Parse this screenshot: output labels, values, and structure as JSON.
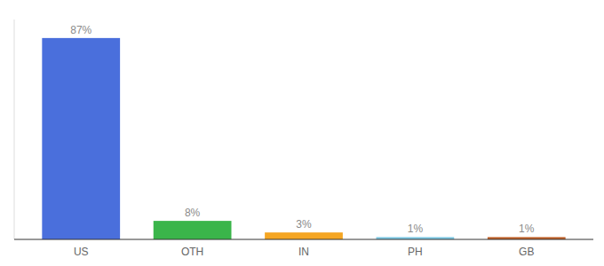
{
  "chart_data": {
    "type": "bar",
    "categories": [
      "US",
      "OTH",
      "IN",
      "PH",
      "GB"
    ],
    "values": [
      87,
      8,
      3,
      1,
      1
    ],
    "value_labels": [
      "87%",
      "8%",
      "3%",
      "1%",
      "1%"
    ],
    "colors": [
      "#4a6fdc",
      "#3ab54a",
      "#f5a623",
      "#7ec8e3",
      "#c0622a"
    ],
    "ylim": [
      0,
      95
    ],
    "data_labels": true,
    "tick_labels": "x"
  }
}
